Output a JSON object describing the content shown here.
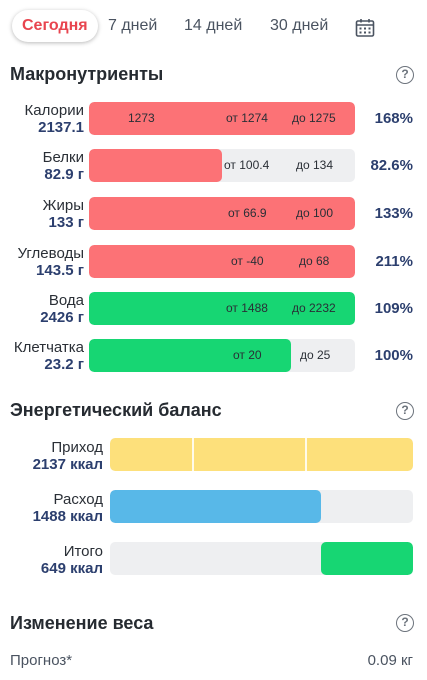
{
  "tabs": [
    {
      "label": "Сегодня",
      "active": true
    },
    {
      "label": "7 дней",
      "active": false
    },
    {
      "label": "14 дней",
      "active": false
    },
    {
      "label": "30 дней",
      "active": false
    }
  ],
  "calendar_icon": "calendar-icon",
  "macros": {
    "title": "Макронутриенты",
    "help": "?",
    "rows": [
      {
        "name": "Калории",
        "value": "2137.1",
        "marks": [
          "1273",
          "от 1274",
          "до 1275"
        ],
        "fill_fraction": 1.0,
        "color": "#fc7276",
        "percent": "168%"
      },
      {
        "name": "Белки",
        "value": "82.9 г",
        "marks": [
          "от 100.4",
          "до 134"
        ],
        "fill_fraction": 0.5,
        "color": "#fc7276",
        "percent": "82.6%"
      },
      {
        "name": "Жиры",
        "value": "133 г",
        "marks": [
          "от 66.9",
          "до 100"
        ],
        "fill_fraction": 1.0,
        "color": "#fc7276",
        "percent": "133%"
      },
      {
        "name": "Углеводы",
        "value": "143.5 г",
        "marks": [
          "от -40",
          "до 68"
        ],
        "fill_fraction": 1.0,
        "color": "#fc7276",
        "percent": "211%"
      },
      {
        "name": "Вода",
        "value": "2426 г",
        "marks": [
          "от 1488",
          "до 2232"
        ],
        "fill_fraction": 1.0,
        "color": "#17d673",
        "percent": "109%"
      },
      {
        "name": "Клетчатка",
        "value": "23.2 г",
        "marks": [
          "от 20",
          "до 25"
        ],
        "fill_fraction": 0.76,
        "color": "#17d673",
        "percent": "100%"
      }
    ]
  },
  "energy": {
    "title": "Энергетический баланс",
    "help": "?",
    "rows": [
      {
        "name": "Приход",
        "value": "2137 ккал",
        "fill_fraction": 1.0,
        "color": "#fde07b"
      },
      {
        "name": "Расход",
        "value": "1488 ккал",
        "fill_fraction": 0.696,
        "color": "#58b8e8"
      },
      {
        "name": "Итого",
        "value": "649 ккал",
        "fill_fraction": 0.304,
        "color": "#17d673"
      }
    ]
  },
  "weight": {
    "title": "Изменение веса",
    "help": "?",
    "forecast_label": "Прогноз*",
    "forecast_value": "0.09 кг"
  }
}
